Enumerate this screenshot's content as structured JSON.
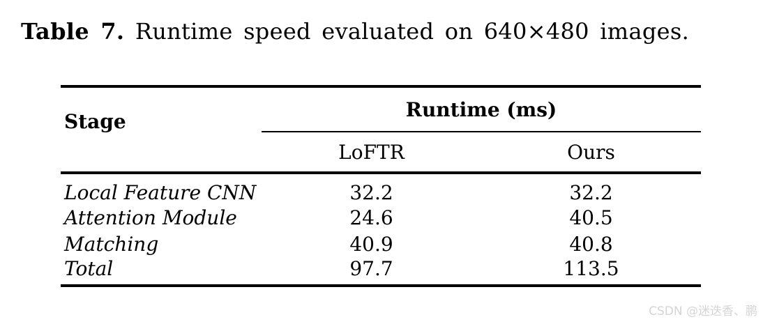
{
  "caption": {
    "label": "Table 7.",
    "text": "Runtime speed evaluated on 640×480 images."
  },
  "table": {
    "col_stage": "Stage",
    "col_group": "Runtime (ms)",
    "col_loftr": "LoFTR",
    "col_ours": "Ours",
    "rows": [
      {
        "stage": "Local Feature CNN",
        "loftr": "32.2",
        "ours": "32.2"
      },
      {
        "stage": "Attention Module",
        "loftr": "24.6",
        "ours": "40.5"
      },
      {
        "stage": "Matching",
        "loftr": "40.9",
        "ours": "40.8"
      },
      {
        "stage": "Total",
        "loftr": "97.7",
        "ours": "113.5"
      }
    ]
  },
  "watermark": {
    "text": "CSDN @迷迭香、鹏"
  },
  "colors": {
    "text": "#000000",
    "background": "#ffffff",
    "rule": "#000000",
    "watermark": "#d5d5d5"
  }
}
